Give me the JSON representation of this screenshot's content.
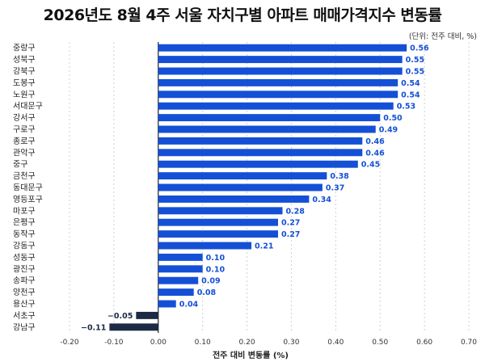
{
  "title": "2026년도 8월 4주 서울 자치구별 아파트 매매가격지수 변동률",
  "unit_note": "(단위: 전주 대비, %)",
  "colors": {
    "positive_bar": "#1450d6",
    "negative_bar": "#1c2a45",
    "positive_label": "#1450d6",
    "negative_label": "#1c2a45",
    "grid": "#c9cfd8",
    "zero_line": "#222222"
  },
  "chart_data": {
    "type": "bar",
    "orientation": "horizontal",
    "title": "2026년도 8월 4주 서울 자치구별 아파트 매매가격지수 변동률",
    "xlabel": "전주 대비 변동률 (%)",
    "ylabel": "",
    "xlim": [
      -0.2,
      0.7
    ],
    "xticks": [
      "-0.20",
      "-0.10",
      "0.00",
      "0.10",
      "0.20",
      "0.30",
      "0.40",
      "0.50",
      "0.60",
      "0.70"
    ],
    "xtick_values": [
      -0.2,
      -0.1,
      0.0,
      0.1,
      0.2,
      0.3,
      0.4,
      0.5,
      0.6,
      0.7
    ],
    "grid": "vertical dashed",
    "categories": [
      "중랑구",
      "성북구",
      "강북구",
      "도봉구",
      "노원구",
      "서대문구",
      "강서구",
      "구로구",
      "종로구",
      "관악구",
      "중구",
      "금천구",
      "동대문구",
      "영등포구",
      "마포구",
      "은평구",
      "동작구",
      "강동구",
      "성동구",
      "광진구",
      "송파구",
      "양천구",
      "용산구",
      "서초구",
      "강남구"
    ],
    "values": [
      0.56,
      0.55,
      0.55,
      0.54,
      0.54,
      0.53,
      0.5,
      0.49,
      0.46,
      0.46,
      0.45,
      0.38,
      0.37,
      0.34,
      0.28,
      0.27,
      0.27,
      0.21,
      0.1,
      0.1,
      0.09,
      0.08,
      0.04,
      -0.05,
      -0.11
    ],
    "value_labels": [
      "0.56",
      "0.55",
      "0.55",
      "0.54",
      "0.54",
      "0.53",
      "0.50",
      "0.49",
      "0.46",
      "0.46",
      "0.45",
      "0.38",
      "0.37",
      "0.34",
      "0.28",
      "0.27",
      "0.27",
      "0.21",
      "0.10",
      "0.10",
      "0.09",
      "0.08",
      "0.04",
      "−0.05",
      "−0.11"
    ]
  }
}
